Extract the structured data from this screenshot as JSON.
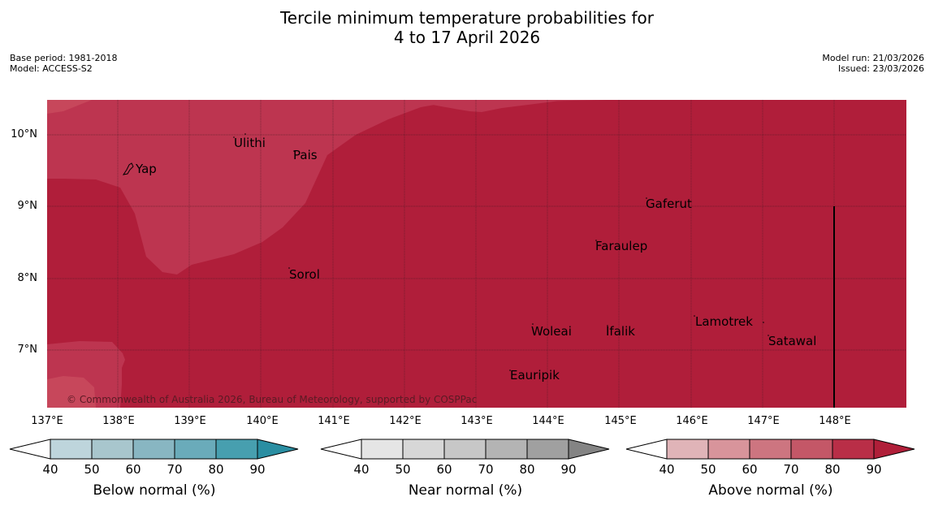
{
  "title_line1": "Tercile minimum temperature probabilities for",
  "title_line2": "4 to 17 April 2026",
  "info": {
    "base_period": "Base period: 1981-2018",
    "model": "Model: ACCESS-S2",
    "model_run": "Model run: 21/03/2026",
    "issued": "Issued: 23/03/2026"
  },
  "axes": {
    "lat_labels": [
      "10°N",
      "9°N",
      "8°N",
      "7°N"
    ],
    "lon_labels": [
      "137°E",
      "138°E",
      "139°E",
      "140°E",
      "141°E",
      "142°E",
      "143°E",
      "144°E",
      "145°E",
      "146°E",
      "147°E",
      "148°E"
    ]
  },
  "places": [
    "Ulithi",
    "Pais",
    "Yap",
    "Gaferut",
    "Faraulep",
    "Sorol",
    "Lamotrek",
    "Woleai",
    "Ifalik",
    "Satawal",
    "Eauripik"
  ],
  "copyright": "© Commonwealth of Australia 2026, Bureau of Meteorology, supported by COSPPac",
  "legends": [
    {
      "title": "Below normal (%)",
      "ticks": [
        "40",
        "50",
        "60",
        "70",
        "80",
        "90"
      ],
      "colors": [
        "#ffffff",
        "#bed5dc",
        "#a8c6cd",
        "#88b6c2",
        "#6aabba",
        "#479faf",
        "#2a8ea2"
      ]
    },
    {
      "title": "Near normal (%)",
      "ticks": [
        "40",
        "50",
        "60",
        "70",
        "80",
        "90"
      ],
      "colors": [
        "#ffffff",
        "#e5e5e5",
        "#d7d7d7",
        "#c7c7c7",
        "#b4b4b4",
        "#a0a0a0",
        "#848484"
      ]
    },
    {
      "title": "Above normal (%)",
      "ticks": [
        "40",
        "50",
        "60",
        "70",
        "80",
        "90"
      ],
      "colors": [
        "#ffffff",
        "#e0b4b8",
        "#d8949b",
        "#cd7580",
        "#c45767",
        "#b92e47",
        "#b01f39"
      ]
    }
  ],
  "map_colors": {
    "high": "#b01e3a",
    "mid": "#bd3550",
    "low": "#d35d69"
  }
}
